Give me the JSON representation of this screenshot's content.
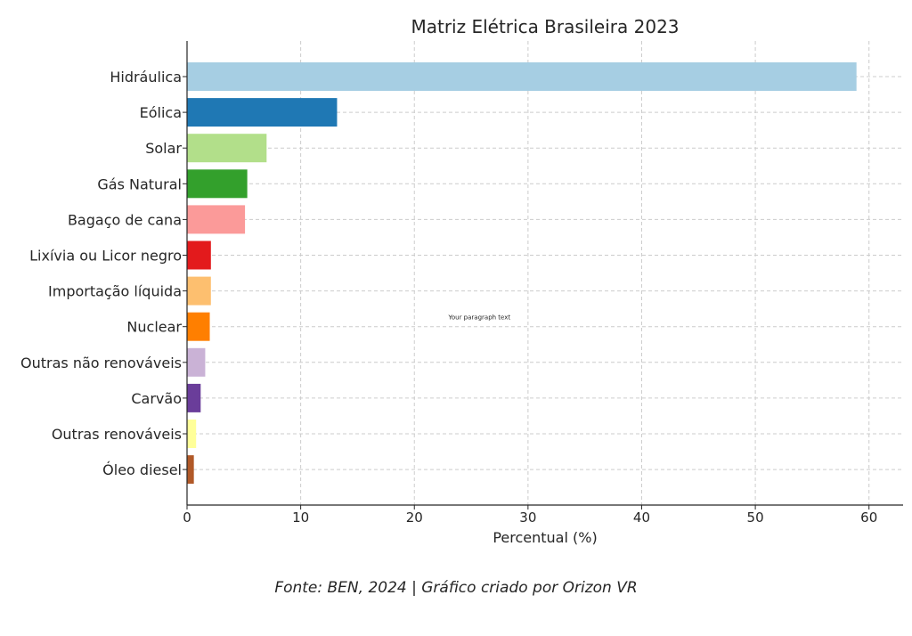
{
  "chart_data": {
    "type": "bar",
    "orientation": "horizontal",
    "title": "Matriz Elétrica Brasileira 2023",
    "xlabel": "Percentual (%)",
    "ylabel": "",
    "xlim": [
      0,
      63
    ],
    "xticks": [
      0,
      10,
      20,
      30,
      40,
      50,
      60
    ],
    "grid": true,
    "categories": [
      "Hidráulica",
      "Eólica",
      "Solar",
      "Gás Natural",
      "Bagaço de cana",
      "Lixívia ou Licor negro",
      "Importação líquida",
      "Nuclear",
      "Outras não renováveis",
      "Carvão",
      "Outras renováveis",
      "Óleo diesel"
    ],
    "values": [
      58.9,
      13.2,
      7.0,
      5.3,
      5.1,
      2.1,
      2.1,
      2.0,
      1.6,
      1.2,
      0.8,
      0.6
    ],
    "colors": [
      "#a6cee3",
      "#1f78b4",
      "#b2df8a",
      "#33a02c",
      "#fb9a99",
      "#e31a1c",
      "#fdbf6f",
      "#ff7f00",
      "#cab2d6",
      "#6a3d9a",
      "#ffff99",
      "#b15928"
    ],
    "annotation": "Your paragraph text",
    "annotation_anchor": {
      "x": 23,
      "y": 7.3
    }
  },
  "caption": "Fonte: BEN, 2024 | Gráfico criado por Orizon VR"
}
